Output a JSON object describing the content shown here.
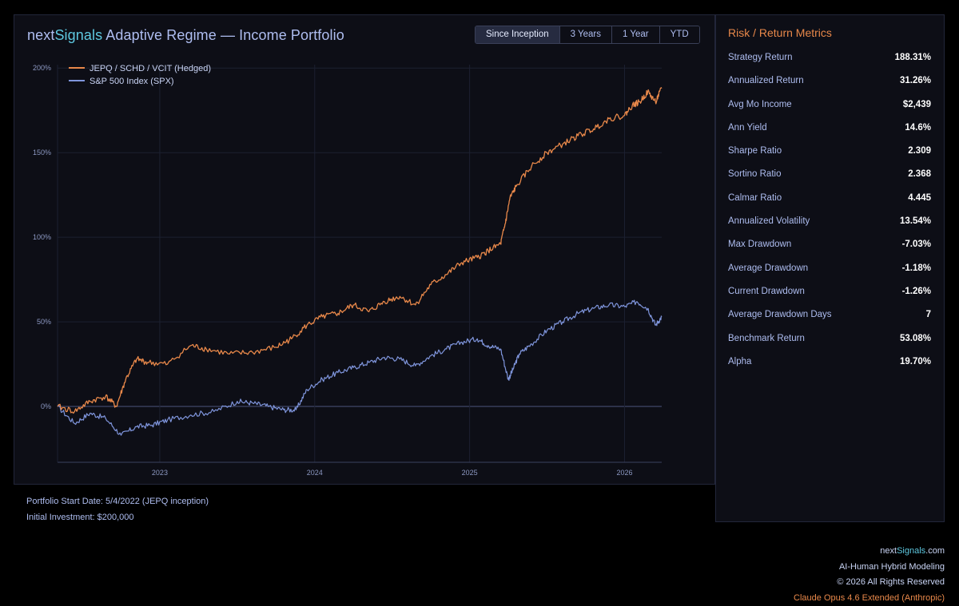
{
  "header": {
    "title_brand_a": "next",
    "title_brand_b": "Signals",
    "title_rest": " Adaptive Regime — Income Portfolio"
  },
  "tabs": [
    {
      "label": "Since Inception",
      "active": true
    },
    {
      "label": "3 Years",
      "active": false
    },
    {
      "label": "1 Year",
      "active": false
    },
    {
      "label": "YTD",
      "active": false
    }
  ],
  "colors": {
    "strategy": "#e8884a",
    "benchmark": "#7f95dc",
    "grid": "#1c2031",
    "zero": "#3b4160",
    "tick": "#8c98c2"
  },
  "chart_data": {
    "type": "line",
    "title": "nextSignals Adaptive Regime — Income Portfolio",
    "xlabel": "",
    "ylabel": "",
    "x_ticks": [
      "2023",
      "2024",
      "2025",
      "2026"
    ],
    "x_tick_values": [
      2023.0,
      2024.0,
      2025.0,
      2026.0
    ],
    "xlim": [
      2022.34,
      2026.24
    ],
    "y_ticks": [
      "0%",
      "50%",
      "100%",
      "150%",
      "200%"
    ],
    "y_tick_values": [
      0,
      50,
      100,
      150,
      200
    ],
    "ylim": [
      -33,
      202
    ],
    "legend_position": "top-left",
    "series": [
      {
        "name": "JEPQ / SCHD / VCIT (Hedged)",
        "x": [
          2022.34,
          2022.45,
          2022.55,
          2022.65,
          2022.72,
          2022.78,
          2022.85,
          2022.92,
          2023.05,
          2023.2,
          2023.3,
          2023.45,
          2023.6,
          2023.75,
          2023.85,
          2023.95,
          2024.05,
          2024.15,
          2024.25,
          2024.35,
          2024.45,
          2024.55,
          2024.65,
          2024.75,
          2024.85,
          2024.95,
          2025.05,
          2025.12,
          2025.2,
          2025.23,
          2025.26,
          2025.3,
          2025.4,
          2025.5,
          2025.6,
          2025.7,
          2025.8,
          2025.9,
          2026.0,
          2026.05,
          2026.1,
          2026.15,
          2026.2,
          2026.24
        ],
        "values": [
          0,
          -3,
          3,
          6,
          0,
          16,
          28,
          26,
          25,
          36,
          34,
          31,
          32,
          35,
          40,
          48,
          53,
          55,
          60,
          56,
          62,
          65,
          60,
          72,
          78,
          85,
          88,
          92,
          96,
          108,
          123,
          130,
          142,
          150,
          155,
          160,
          164,
          170,
          172,
          178,
          180,
          186,
          180,
          188
        ]
      },
      {
        "name": "S&P 500 Index (SPX)",
        "x": [
          2022.34,
          2022.45,
          2022.55,
          2022.65,
          2022.75,
          2022.85,
          2022.95,
          2023.05,
          2023.2,
          2023.35,
          2023.5,
          2023.6,
          2023.7,
          2023.8,
          2023.88,
          2023.95,
          2024.05,
          2024.15,
          2024.25,
          2024.35,
          2024.45,
          2024.55,
          2024.65,
          2024.75,
          2024.85,
          2024.95,
          2025.05,
          2025.12,
          2025.2,
          2025.25,
          2025.28,
          2025.32,
          2025.4,
          2025.5,
          2025.6,
          2025.7,
          2025.8,
          2025.9,
          2026.0,
          2026.08,
          2026.15,
          2026.2,
          2026.24
        ],
        "values": [
          0,
          -10,
          -4,
          -7,
          -17,
          -12,
          -11,
          -8,
          -5,
          -3,
          3,
          2,
          0,
          -2,
          -2,
          10,
          16,
          20,
          23,
          26,
          29,
          28,
          24,
          30,
          34,
          38,
          40,
          36,
          34,
          16,
          22,
          31,
          37,
          45,
          50,
          55,
          58,
          60,
          59,
          62,
          58,
          48,
          53
        ]
      }
    ]
  },
  "metrics": {
    "title": "Risk / Return Metrics",
    "rows": [
      {
        "label": "Strategy Return",
        "value": "188.31%"
      },
      {
        "label": "Annualized Return",
        "value": "31.26%"
      },
      {
        "label": "Avg Mo Income",
        "value": "$2,439"
      },
      {
        "label": "Ann Yield",
        "value": "14.6%"
      },
      {
        "label": "Sharpe Ratio",
        "value": "2.309"
      },
      {
        "label": "Sortino Ratio",
        "value": "2.368"
      },
      {
        "label": "Calmar Ratio",
        "value": "4.445"
      },
      {
        "label": "Annualized Volatility",
        "value": "13.54%"
      },
      {
        "label": "Max Drawdown",
        "value": "-7.03%"
      },
      {
        "label": "Average Drawdown",
        "value": "-1.18%"
      },
      {
        "label": "Current Drawdown",
        "value": "-1.26%"
      },
      {
        "label": "Average Drawdown Days",
        "value": "7"
      },
      {
        "label": "Benchmark Return",
        "value": "53.08%"
      },
      {
        "label": "Alpha",
        "value": "19.70%"
      }
    ]
  },
  "footnotes": {
    "start_date": "Portfolio Start Date: 5/4/2022 (JEPQ inception)",
    "investment": "Initial Investment: $200,000"
  },
  "credits": {
    "site_a": "next",
    "site_b": "Signals",
    "site_c": ".com",
    "tagline": "AI-Human Hybrid Modeling",
    "copyright": "© 2026 All Rights Reserved",
    "model": "Claude Opus 4.6 Extended (Anthropic)"
  }
}
